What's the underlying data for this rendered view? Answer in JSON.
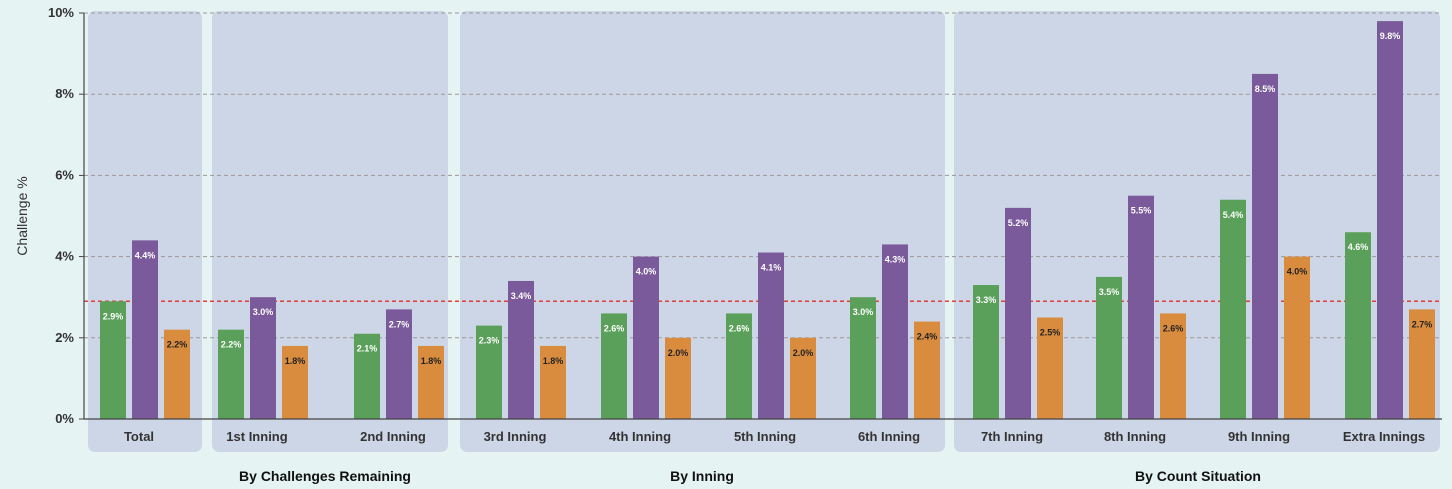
{
  "chart_data": {
    "type": "bar",
    "ylabel": "Challenge %",
    "ylim": [
      0,
      10
    ],
    "yticks": [
      "0%",
      "2%",
      "4%",
      "6%",
      "8%",
      "10%"
    ],
    "grid": true,
    "reference_line": {
      "value": 2.9,
      "style": "dashed",
      "color": "#e0403a"
    },
    "categories": [
      "Total",
      "1st Inning",
      "2nd Inning",
      "3rd Inning",
      "4th Inning",
      "5th Inning",
      "6th Inning",
      "7th Inning",
      "8th Inning",
      "9th Inning",
      "Extra Innings"
    ],
    "groups": [
      {
        "label": "",
        "categories": [
          "Total"
        ]
      },
      {
        "label": "By Challenges Remaining",
        "categories": [
          "1st Inning",
          "2nd Inning"
        ]
      },
      {
        "label": "By Inning",
        "categories": [
          "3rd Inning",
          "4th Inning",
          "5th Inning",
          "6th Inning"
        ]
      },
      {
        "label": "By Count Situation",
        "categories": [
          "7th Inning",
          "8th Inning",
          "9th Inning",
          "Extra Innings"
        ]
      }
    ],
    "series": [
      {
        "color": "#5aa05a",
        "values": [
          2.9,
          2.2,
          2.1,
          2.3,
          2.6,
          2.6,
          3.0,
          3.3,
          3.5,
          5.4,
          4.6
        ],
        "labels": [
          "2.9%",
          "2.2%",
          "2.1%",
          "2.3%",
          "2.6%",
          "2.6%",
          "3.0%",
          "3.3%",
          "3.5%",
          "5.4%",
          "4.6%"
        ]
      },
      {
        "color": "#7a5a9a",
        "values": [
          4.4,
          3.0,
          2.7,
          3.4,
          4.0,
          4.1,
          4.3,
          5.2,
          5.5,
          8.5,
          9.8
        ],
        "labels": [
          "4.4%",
          "3.0%",
          "2.7%",
          "3.4%",
          "4.0%",
          "4.1%",
          "4.3%",
          "5.2%",
          "5.5%",
          "8.5%",
          "9.8%"
        ]
      },
      {
        "color": "#d98c3e",
        "values": [
          2.2,
          1.8,
          1.8,
          1.8,
          2.0,
          2.0,
          2.4,
          2.5,
          2.6,
          4.0,
          2.7
        ],
        "labels": [
          "2.2%",
          "1.8%",
          "1.8%",
          "1.8%",
          "2.0%",
          "2.0%",
          "2.4%",
          "2.5%",
          "2.6%",
          "4.0%",
          "2.7%"
        ]
      }
    ],
    "colors": {
      "background": "#e6f3f3",
      "panel": "#cdd6e6",
      "grid": "#999999",
      "axis": "#444444"
    }
  }
}
